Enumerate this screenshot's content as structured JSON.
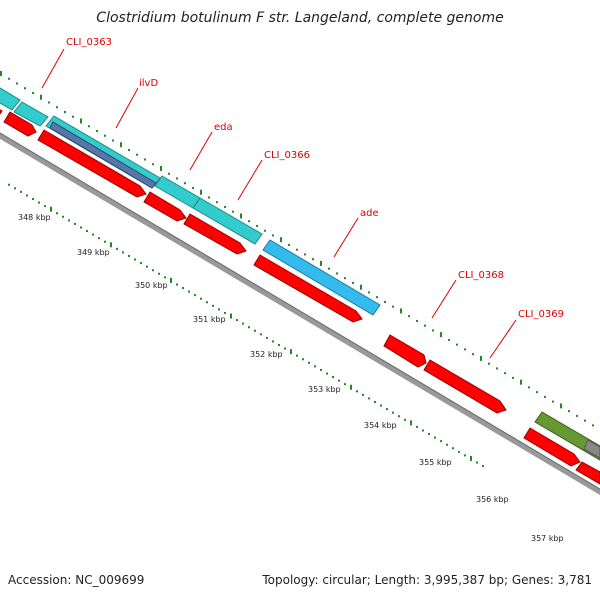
{
  "title": "Clostridium botulinum F str. Langeland, complete genome",
  "footer": {
    "accession": "Accession: NC_009699",
    "topology": "Topology: circular; Length: 3,995,387 bp; Genes: 3,781"
  },
  "colors": {
    "cds_forward": "#ff0000",
    "cds_reverse": "#ff0000",
    "gene_cyan": "#33cccc",
    "gene_blue": "#33bbee",
    "gene_slate": "#5577aa",
    "gene_olive": "#669933",
    "backbone": "#888888",
    "label_red": "#dd0000",
    "tick_green": "#228822"
  },
  "gene_labels": [
    {
      "id": "cli0363",
      "text": "CLI_0363"
    },
    {
      "id": "ilvd",
      "text": "ilvD"
    },
    {
      "id": "eda",
      "text": "eda"
    },
    {
      "id": "cli0366",
      "text": "CLI_0366"
    },
    {
      "id": "ade",
      "text": "ade"
    },
    {
      "id": "cli0368",
      "text": "CLI_0368"
    },
    {
      "id": "cli0369",
      "text": "CLI_0369"
    }
  ],
  "kbp_labels": [
    "348 kbp",
    "349 kbp",
    "350 kbp",
    "351 kbp",
    "352 kbp",
    "353 kbp",
    "354 kbp",
    "355 kbp",
    "356 kbp",
    "357 kbp"
  ]
}
